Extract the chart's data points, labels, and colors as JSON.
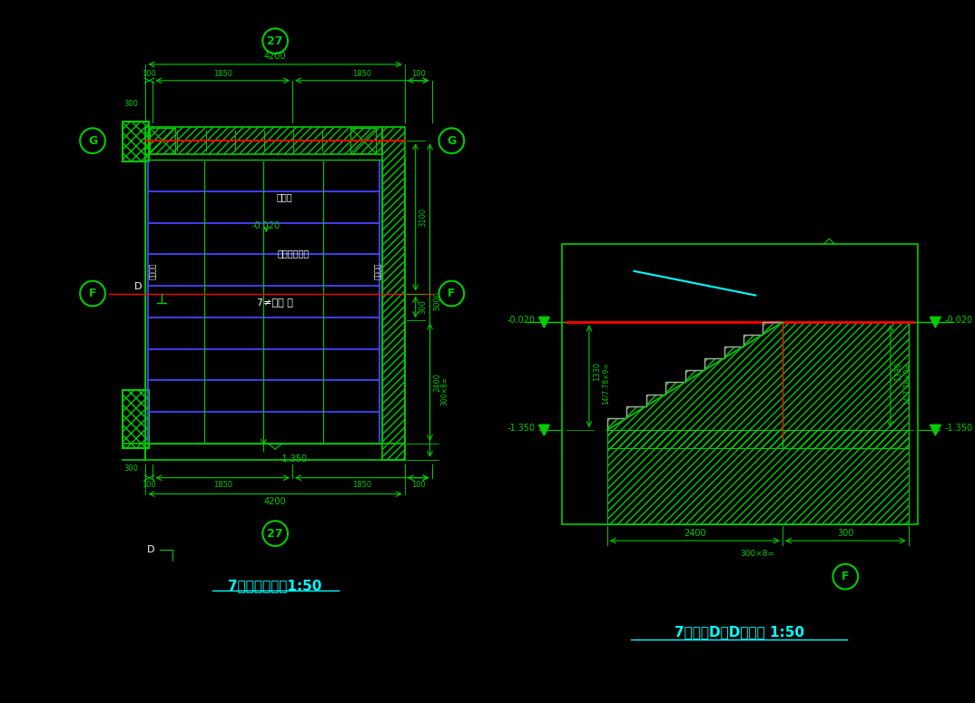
{
  "bg_color": "#000000",
  "gc": "#00CC00",
  "bc": "#4444FF",
  "cc": "#00FFFF",
  "rc": "#FF0000",
  "wc": "#FFFFFF",
  "plan_title": "7＃台阶平面图1:50",
  "section_title": "7＃台阶D－D剖面图 1:50",
  "water_text": "坡水处",
  "step_note": "台阶做法详图",
  "step_tag": "7≠台阶 下",
  "handrail": "靠墙扶手",
  "elev_020": "-0.020",
  "elev_1350": "-1.350",
  "d4200": "4200",
  "d100": "100",
  "d1850": "1850",
  "d300": "300",
  "d3100": "3100",
  "d5000": "5000",
  "d2400": "2400",
  "d300x8": "300×8=",
  "d1330": "1330",
  "d_rate": "14/7.78×9=",
  "label_27": "27",
  "label_G": "G",
  "label_F": "F",
  "label_D": "D",
  "note_300x8": "300×8="
}
